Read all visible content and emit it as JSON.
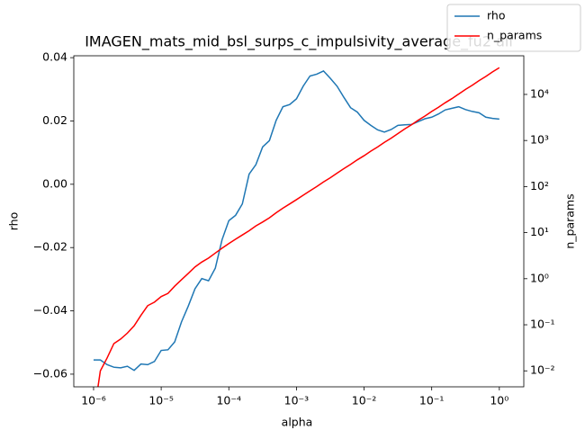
{
  "chart_data": {
    "type": "line",
    "title": "IMAGEN_mats_mid_bsl_surps_c_impulsivity_average_fu2 all",
    "x_label": "alpha",
    "y_label": "rho",
    "y2_label": "n_params",
    "x_log": true,
    "y2_log": true,
    "legend": "upper right",
    "x": [
      1e-06,
      1.259e-06,
      1.585e-06,
      1.995e-06,
      2.512e-06,
      3.162e-06,
      3.981e-06,
      5.012e-06,
      6.31e-06,
      7.943e-06,
      1e-05,
      1.259e-05,
      1.585e-05,
      1.995e-05,
      2.512e-05,
      3.162e-05,
      3.981e-05,
      5.012e-05,
      6.31e-05,
      7.943e-05,
      0.0001,
      0.0001259,
      0.0001585,
      0.0001995,
      0.0002512,
      0.0003162,
      0.0003981,
      0.0005012,
      0.000631,
      0.0007943,
      0.001,
      0.001259,
      0.001585,
      0.001995,
      0.002512,
      0.003162,
      0.003981,
      0.005012,
      0.00631,
      0.007943,
      0.01,
      0.01259,
      0.01585,
      0.01995,
      0.02512,
      0.03162,
      0.03981,
      0.05012,
      0.0631,
      0.07943,
      0.1,
      0.1259,
      0.1585,
      0.1995,
      0.2512,
      0.3162,
      0.3981,
      0.5012,
      0.631,
      0.7943,
      1
    ],
    "series": [
      {
        "name": "rho",
        "color": "#1f77b4",
        "axis": "y",
        "values": [
          -0.0555,
          -0.0555,
          -0.057,
          -0.0578,
          -0.058,
          -0.0575,
          -0.0588,
          -0.0568,
          -0.057,
          -0.056,
          -0.0525,
          -0.0523,
          -0.0498,
          -0.0435,
          -0.0385,
          -0.033,
          -0.0298,
          -0.0305,
          -0.0265,
          -0.0175,
          -0.0115,
          -0.0098,
          -0.0062,
          0.0032,
          0.0062,
          0.0118,
          0.0138,
          0.0202,
          0.0245,
          0.0252,
          0.027,
          0.031,
          0.0342,
          0.0348,
          0.0358,
          0.0335,
          0.031,
          0.0275,
          0.0242,
          0.0228,
          0.0202,
          0.0186,
          0.0172,
          0.0165,
          0.0173,
          0.0186,
          0.0188,
          0.0189,
          0.0198,
          0.0207,
          0.0212,
          0.0222,
          0.0235,
          0.024,
          0.0245,
          0.0236,
          0.023,
          0.0226,
          0.0212,
          0.0208,
          0.0206
        ]
      },
      {
        "name": "n_params",
        "color": "#ff0000",
        "axis": "y2",
        "values": [
          0.001,
          0.01,
          0.019,
          0.039,
          0.049,
          0.066,
          0.095,
          0.16,
          0.26,
          0.31,
          0.41,
          0.48,
          0.69,
          0.95,
          1.3,
          1.8,
          2.3,
          2.8,
          3.6,
          4.6,
          5.8,
          7.2,
          8.9,
          11,
          14,
          17,
          21,
          27,
          34,
          42,
          52,
          65,
          81,
          100,
          126,
          155,
          195,
          245,
          302,
          380,
          468,
          589,
          724,
          912,
          1122,
          1413,
          1778,
          2188,
          2754,
          3388,
          4266,
          5248,
          6607,
          8128,
          10233,
          12882,
          15849,
          19953,
          24547,
          30903,
          38019
        ]
      }
    ],
    "xlim": [
      5.1e-07,
      2.3
    ],
    "xticks": [
      {
        "value": 1e-06,
        "label": "10⁻⁶"
      },
      {
        "value": 1e-05,
        "label": "10⁻⁵"
      },
      {
        "value": 0.0001,
        "label": "10⁻⁴"
      },
      {
        "value": 0.001,
        "label": "10⁻³"
      },
      {
        "value": 0.01,
        "label": "10⁻²"
      },
      {
        "value": 0.1,
        "label": "10⁻¹"
      },
      {
        "value": 1,
        "label": "10⁰"
      }
    ],
    "ylim": [
      -0.064,
      0.0406
    ],
    "yticks": [
      {
        "value": -0.06,
        "label": "−0.06"
      },
      {
        "value": -0.04,
        "label": "−0.04"
      },
      {
        "value": -0.02,
        "label": "−0.02"
      },
      {
        "value": 0,
        "label": "0.00"
      },
      0.02,
      0.04
    ],
    "y2lim": [
      0.0045,
      69000
    ],
    "y2ticks": [
      {
        "value": 0.01,
        "label": "10⁻²"
      },
      {
        "value": 0.1,
        "label": "10⁻¹"
      },
      {
        "value": 1,
        "label": "10⁰"
      },
      {
        "value": 10,
        "label": "10¹"
      },
      {
        "value": 100,
        "label": "10²"
      },
      {
        "value": 1000,
        "label": "10³"
      },
      {
        "value": 10000,
        "label": "10⁴"
      }
    ]
  }
}
